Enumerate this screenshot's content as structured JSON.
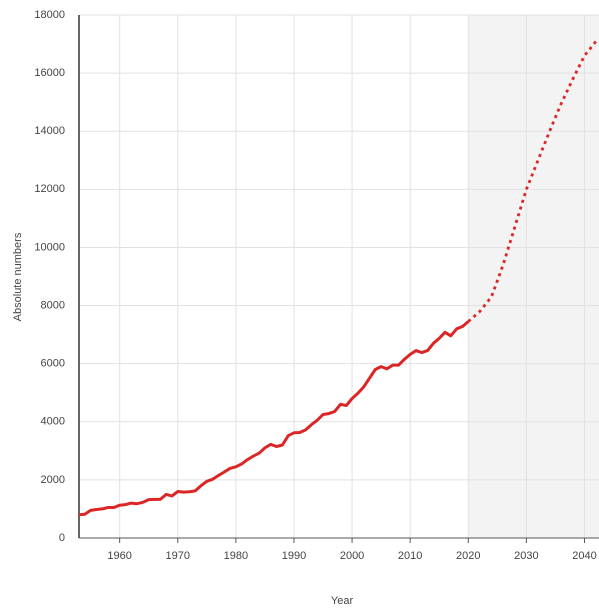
{
  "chart_data": {
    "type": "line",
    "x_label": "Year",
    "y_label": "Absolute numbers",
    "xlim": [
      1953,
      2042.5
    ],
    "xticks": [
      1960,
      1970,
      1980,
      1990,
      2000,
      2010,
      2020,
      2030,
      2040
    ],
    "ylim": [
      0,
      18000
    ],
    "yticks": [
      0,
      2000,
      4000,
      6000,
      8000,
      10000,
      12000,
      14000,
      16000,
      18000
    ],
    "grid": true,
    "shade_from": 2020,
    "series": [
      {
        "color": "#dc2626",
        "style": "solid",
        "x": [
          1953,
          1954,
          1955,
          1956,
          1957,
          1958,
          1959,
          1960,
          1961,
          1962,
          1963,
          1964,
          1965,
          1966,
          1967,
          1968,
          1969,
          1970,
          1971,
          1972,
          1973,
          1974,
          1975,
          1976,
          1977,
          1978,
          1979,
          1980,
          1981,
          1982,
          1983,
          1984,
          1985,
          1986,
          1987,
          1988,
          1989,
          1990,
          1991,
          1992,
          1993,
          1994,
          1995,
          1996,
          1997,
          1998,
          1999,
          2000,
          2001,
          2002,
          2003,
          2004,
          2005,
          2006,
          2007,
          2008,
          2009,
          2010,
          2011,
          2012,
          2013,
          2014,
          2015,
          2016,
          2017,
          2018,
          2019,
          2020
        ],
        "values": [
          800,
          820,
          950,
          980,
          1000,
          1050,
          1050,
          1130,
          1150,
          1200,
          1180,
          1230,
          1320,
          1330,
          1330,
          1500,
          1450,
          1600,
          1580,
          1590,
          1620,
          1800,
          1950,
          2020,
          2150,
          2270,
          2400,
          2450,
          2550,
          2700,
          2820,
          2920,
          3100,
          3220,
          3150,
          3200,
          3520,
          3620,
          3630,
          3720,
          3900,
          4050,
          4250,
          4280,
          4350,
          4600,
          4560,
          4800,
          4980,
          5200,
          5500,
          5800,
          5900,
          5820,
          5950,
          5950,
          6150,
          6320,
          6450,
          6380,
          6450,
          6700,
          6870,
          7080,
          6960,
          7200,
          7280,
          7450
        ]
      },
      {
        "color": "#dc2626",
        "style": "dotted",
        "x": [
          2020,
          2022,
          2024,
          2026,
          2028,
          2030,
          2032,
          2034,
          2036,
          2038,
          2040,
          2042
        ],
        "values": [
          7450,
          7800,
          8300,
          9400,
          10700,
          12000,
          13000,
          14000,
          14950,
          15800,
          16600,
          17100
        ]
      }
    ]
  }
}
